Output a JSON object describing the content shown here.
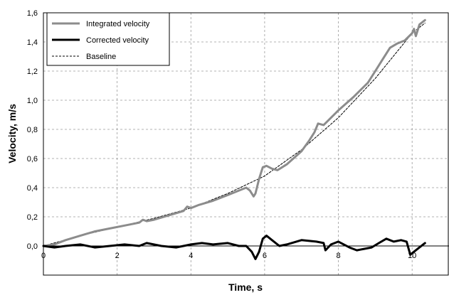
{
  "chart_data": {
    "type": "line",
    "xlabel": "Time, s",
    "ylabel": "Velocity, m/s",
    "xlim": [
      0,
      11
    ],
    "ylim": [
      -0.2,
      1.6
    ],
    "x_ticks": [
      "0",
      "2",
      "4",
      "6",
      "8",
      "10"
    ],
    "y_ticks": [
      "0,0",
      "0,2",
      "0,4",
      "0,6",
      "0,8",
      "1,0",
      "1,2",
      "1,4",
      "1,6"
    ],
    "grid": "dashed",
    "legend_position": "top-left",
    "series": [
      {
        "name": "Integrated velocity",
        "color": "#8c8c8c",
        "style": "solid",
        "x": [
          0,
          0.3,
          0.6,
          1.0,
          1.4,
          1.8,
          2.2,
          2.6,
          2.7,
          2.8,
          3.0,
          3.4,
          3.8,
          3.9,
          4.0,
          4.2,
          4.6,
          5.0,
          5.3,
          5.5,
          5.6,
          5.7,
          5.75,
          5.85,
          5.95,
          6.05,
          6.2,
          6.35,
          6.6,
          7.0,
          7.2,
          7.35,
          7.45,
          7.6,
          8.0,
          8.4,
          8.8,
          9.0,
          9.2,
          9.4,
          9.6,
          9.8,
          10.0,
          10.05,
          10.1,
          10.2,
          10.35
        ],
        "y": [
          0.0,
          0.01,
          0.04,
          0.07,
          0.1,
          0.12,
          0.14,
          0.16,
          0.18,
          0.17,
          0.18,
          0.21,
          0.24,
          0.27,
          0.26,
          0.28,
          0.31,
          0.35,
          0.38,
          0.4,
          0.38,
          0.34,
          0.36,
          0.46,
          0.54,
          0.55,
          0.53,
          0.52,
          0.56,
          0.65,
          0.72,
          0.78,
          0.84,
          0.83,
          0.93,
          1.02,
          1.12,
          1.2,
          1.28,
          1.36,
          1.39,
          1.41,
          1.46,
          1.49,
          1.44,
          1.52,
          1.55
        ]
      },
      {
        "name": "Corrected velocity",
        "color": "#000000",
        "style": "solid",
        "x": [
          0,
          0.3,
          0.6,
          1.0,
          1.4,
          1.8,
          2.2,
          2.6,
          2.8,
          3.2,
          3.6,
          4.0,
          4.3,
          4.6,
          5.0,
          5.3,
          5.5,
          5.65,
          5.75,
          5.85,
          5.95,
          6.05,
          6.2,
          6.4,
          6.6,
          7.0,
          7.4,
          7.6,
          7.65,
          7.8,
          8.0,
          8.3,
          8.5,
          8.7,
          8.9,
          9.1,
          9.3,
          9.5,
          9.7,
          9.85,
          9.95,
          10.1,
          10.3,
          10.35
        ],
        "y": [
          0.0,
          -0.01,
          0.0,
          0.01,
          -0.01,
          0.0,
          0.01,
          0.0,
          0.02,
          0.0,
          -0.01,
          0.01,
          0.02,
          0.01,
          0.02,
          0.0,
          0.0,
          -0.04,
          -0.09,
          -0.04,
          0.05,
          0.07,
          0.04,
          0.0,
          0.01,
          0.04,
          0.03,
          0.02,
          -0.03,
          0.01,
          0.03,
          -0.01,
          -0.03,
          -0.02,
          -0.01,
          0.02,
          0.05,
          0.03,
          0.04,
          0.03,
          -0.06,
          -0.03,
          0.01,
          0.02
        ]
      },
      {
        "name": "Baseline",
        "color": "#000000",
        "style": "dashed",
        "x": [
          0,
          1,
          2,
          3,
          4,
          5,
          6,
          7,
          8,
          9,
          10,
          10.35
        ],
        "y": [
          0.0,
          0.07,
          0.13,
          0.19,
          0.26,
          0.36,
          0.48,
          0.66,
          0.88,
          1.15,
          1.46,
          1.53
        ]
      }
    ]
  }
}
